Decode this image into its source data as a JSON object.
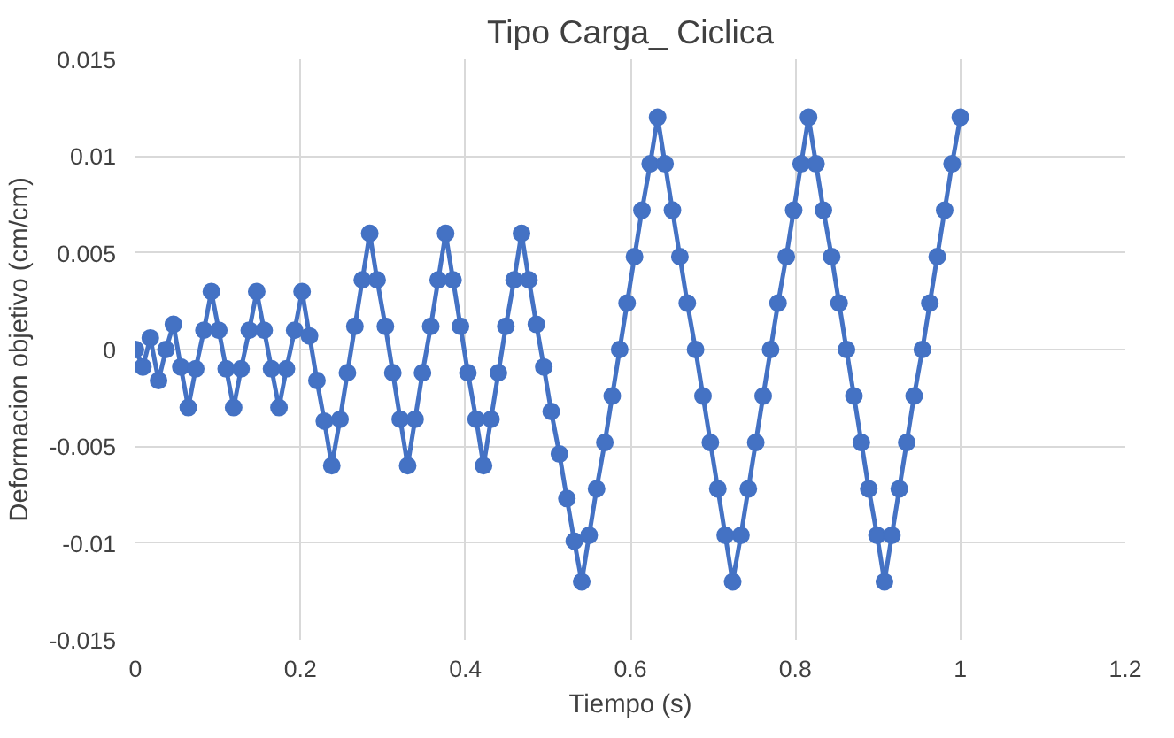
{
  "chart_data": {
    "type": "line",
    "title": "Tipo Carga_ Ciclica",
    "xlabel": "Tiempo (s)",
    "ylabel": "Deformacion objetivo (cm/cm)",
    "xlim": [
      0,
      1.2
    ],
    "xticks": [
      0,
      0.2,
      0.4,
      0.6,
      0.8,
      1,
      1.2
    ],
    "ylim": [
      -0.015,
      0.015
    ],
    "yticks": [
      -0.015,
      -0.01,
      -0.005,
      0,
      0.005,
      0.01,
      0.015
    ],
    "grid": true,
    "marker": "circle",
    "line_style": "solid",
    "series": [
      {
        "color": "#4472c4",
        "x": [
          0,
          0.009,
          0.018,
          0.028,
          0.037,
          0.046,
          0.055,
          0.064,
          0.073,
          0.083,
          0.092,
          0.101,
          0.11,
          0.119,
          0.128,
          0.138,
          0.147,
          0.156,
          0.165,
          0.174,
          0.183,
          0.193,
          0.202,
          0.211,
          0.22,
          0.229,
          0.238,
          0.248,
          0.257,
          0.266,
          0.275,
          0.284,
          0.293,
          0.303,
          0.312,
          0.321,
          0.33,
          0.339,
          0.348,
          0.358,
          0.367,
          0.376,
          0.385,
          0.394,
          0.403,
          0.413,
          0.422,
          0.431,
          0.44,
          0.449,
          0.459,
          0.468,
          0.477,
          0.486,
          0.495,
          0.504,
          0.514,
          0.523,
          0.532,
          0.541,
          0.55,
          0.559,
          0.569,
          0.578,
          0.587,
          0.596,
          0.605,
          0.614,
          0.624,
          0.633,
          0.642,
          0.651,
          0.66,
          0.669,
          0.679,
          0.688,
          0.697,
          0.706,
          0.715,
          0.724,
          0.734,
          0.743,
          0.752,
          0.761,
          0.77,
          0.779,
          0.789,
          0.798,
          0.807,
          0.816,
          0.825,
          0.834,
          0.844,
          0.853,
          0.862,
          0.871,
          0.88,
          0.889,
          0.899,
          0.908,
          0.917,
          0.926,
          0.935,
          0.944,
          0.954,
          0.963,
          0.972,
          0.981,
          0.99,
          1.0
        ],
        "values": [
          0,
          -0.0009,
          0.0006,
          -0.0016,
          0,
          0.0013,
          -0.0009,
          -0.003,
          -0.001,
          0.001,
          0.003,
          0.001,
          -0.001,
          -0.003,
          -0.001,
          0.001,
          0.003,
          0.001,
          -0.001,
          -0.003,
          -0.001,
          0.001,
          0.003,
          0.0007,
          -0.0016,
          -0.0037,
          -0.006,
          -0.0036,
          -0.0012,
          0.0012,
          0.0036,
          0.006,
          0.0036,
          0.0012,
          -0.0012,
          -0.0036,
          -0.006,
          -0.0036,
          -0.0012,
          0.0012,
          0.0036,
          0.006,
          0.0036,
          0.0012,
          -0.0012,
          -0.0036,
          -0.006,
          -0.0036,
          -0.0012,
          0.0012,
          0.0036,
          0.006,
          0.0036,
          0.0013,
          -0.0009,
          -0.0032,
          -0.0054,
          -0.0077,
          -0.0099,
          -0.012,
          -0.0096,
          -0.0072,
          -0.0048,
          -0.0024,
          0,
          0.0024,
          0.0048,
          0.0072,
          0.0096,
          0.012,
          0.0096,
          0.0072,
          0.0048,
          0.0024,
          0,
          -0.0024,
          -0.0048,
          -0.0072,
          -0.0096,
          -0.012,
          -0.0096,
          -0.0072,
          -0.0048,
          -0.0024,
          0,
          0.0024,
          0.0048,
          0.0072,
          0.0096,
          0.012,
          0.0096,
          0.0072,
          0.0048,
          0.0024,
          0,
          -0.0024,
          -0.0048,
          -0.0072,
          -0.0096,
          -0.012,
          -0.0096,
          -0.0072,
          -0.0048,
          -0.0024,
          0,
          0.0024,
          0.0048,
          0.0072,
          0.0096,
          0.012
        ]
      }
    ]
  }
}
